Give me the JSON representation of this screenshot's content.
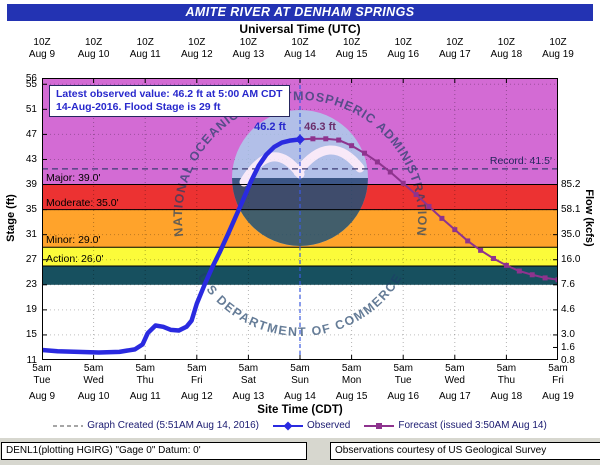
{
  "title": "AMITE RIVER AT DENHAM SPRINGS",
  "top_axis": {
    "label": "Universal Time (UTC)",
    "tick_time": "10Z",
    "dates": [
      "Aug 9",
      "Aug 10",
      "Aug 11",
      "Aug 12",
      "Aug 13",
      "Aug 14",
      "Aug 15",
      "Aug 16",
      "Aug 17",
      "Aug 18",
      "Aug 19"
    ]
  },
  "bottom_axis": {
    "label": "Site Time (CDT)",
    "tick_time": "5am",
    "weekdays": [
      "Tue",
      "Wed",
      "Thu",
      "Fri",
      "Sat",
      "Sun",
      "Mon",
      "Tue",
      "Wed",
      "Thu",
      "Fri"
    ],
    "dates": [
      "Aug 9",
      "Aug 10",
      "Aug 11",
      "Aug 12",
      "Aug 13",
      "Aug 14",
      "Aug 15",
      "Aug 16",
      "Aug 17",
      "Aug 18",
      "Aug 19"
    ]
  },
  "left_axis": {
    "label": "Stage (ft)",
    "ticks": [
      56,
      55,
      51,
      47,
      43,
      39,
      35,
      31,
      27,
      23,
      19,
      15,
      11
    ]
  },
  "right_axis": {
    "label": "Flow (kcfs)",
    "ticks": [
      {
        "stage": 39,
        "label": "85.2"
      },
      {
        "stage": 35,
        "label": "58.1"
      },
      {
        "stage": 31,
        "label": "35.0"
      },
      {
        "stage": 27,
        "label": "16.0"
      },
      {
        "stage": 23,
        "label": "7.6"
      },
      {
        "stage": 19,
        "label": "4.6"
      },
      {
        "stage": 15,
        "label": "3.0"
      },
      {
        "stage": 13,
        "label": "1.6"
      },
      {
        "stage": 11,
        "label": "0.8"
      }
    ]
  },
  "info_box": {
    "line1": "Latest observed value: 46.2 ft at 5:00 AM CDT",
    "line2": "14-Aug-2016.  Flood Stage is 29 ft"
  },
  "annotations": {
    "observed_peak": "46.2 ft",
    "forecast_peak": "46.3 ft",
    "record_label": "Record: 41.5'"
  },
  "thresholds": [
    {
      "name": "Major",
      "label": "Major: 39.0'",
      "stage": 39
    },
    {
      "name": "Moderate",
      "label": "Moderate: 35.0'",
      "stage": 35
    },
    {
      "name": "Minor",
      "label": "Minor: 29.0'",
      "stage": 29
    },
    {
      "name": "Action",
      "label": "Action: 26.0'",
      "stage": 26
    }
  ],
  "bands": [
    {
      "name": "major",
      "from": 39,
      "to": 56,
      "color": "#d36bd4"
    },
    {
      "name": "moderate",
      "from": 35,
      "to": 39,
      "color": "#ec3232"
    },
    {
      "name": "minor",
      "from": 29,
      "to": 35,
      "color": "#ffa32b"
    },
    {
      "name": "action",
      "from": 26,
      "to": 29,
      "color": "#fbfb3a"
    },
    {
      "name": "below-action",
      "from": 23,
      "to": 26,
      "color": "#17505f"
    }
  ],
  "watermark": {
    "arc_top": "NATIONAL OCEANIC AND ATMOSPHERIC ADMINISTRATION",
    "arc_bottom": "U.S DEPARTMENT OF COMMERCE"
  },
  "legend": [
    {
      "label": "Graph Created (5:51AM Aug 14, 2016)",
      "marker": "dashed",
      "color": "#888888"
    },
    {
      "label": "Observed",
      "marker": "line-diamond",
      "color": "#2a2ae0"
    },
    {
      "label": "Forecast (issued 3:50AM Aug 14)",
      "marker": "line-square",
      "color": "#8e338e"
    }
  ],
  "footer": {
    "left": "DENL1(plotting HGIRG) \"Gage 0\" Datum: 0'",
    "right": "Observations courtesy of US Geological Survey"
  },
  "chart_data": {
    "type": "line",
    "title": "AMITE RIVER AT DENHAM SPRINGS",
    "xlabel": "Site Time (CDT)",
    "ylabel": "Stage (ft)",
    "ylabel_right": "Flow (kcfs)",
    "ylim": [
      11,
      56
    ],
    "x_unit": "days since Aug 9 2016 5:00 AM CDT (ticks daily at 5am CDT / 10Z)",
    "grid": true,
    "legend_position": "bottom",
    "flood_categories": {
      "action": 26.0,
      "minor": 29.0,
      "moderate": 35.0,
      "major": 39.0,
      "record": 41.5
    },
    "latest_observed": {
      "stage_ft": 46.2,
      "time": "5:00 AM CDT 14-Aug-2016"
    },
    "forecast_crest_ft": 46.3,
    "stage_to_flow_kcfs": [
      [
        11,
        0.8
      ],
      [
        13,
        1.6
      ],
      [
        15,
        3.0
      ],
      [
        19,
        4.6
      ],
      [
        23,
        7.6
      ],
      [
        27,
        16.0
      ],
      [
        31,
        35.0
      ],
      [
        35,
        58.1
      ],
      [
        39,
        85.2
      ]
    ],
    "series": [
      {
        "name": "Observed",
        "color": "#2a2ae0",
        "points": [
          [
            0,
            12.6
          ],
          [
            0.3,
            12.4
          ],
          [
            0.7,
            12.3
          ],
          [
            1.1,
            12.2
          ],
          [
            1.5,
            12.3
          ],
          [
            1.8,
            12.7
          ],
          [
            1.95,
            13.5
          ],
          [
            2.05,
            15.3
          ],
          [
            2.2,
            16.5
          ],
          [
            2.35,
            16.3
          ],
          [
            2.5,
            15.8
          ],
          [
            2.65,
            15.7
          ],
          [
            2.8,
            16.3
          ],
          [
            2.9,
            17.3
          ],
          [
            3.0,
            20.0
          ],
          [
            3.15,
            23.0
          ],
          [
            3.3,
            25.8
          ],
          [
            3.45,
            28.3
          ],
          [
            3.6,
            31.0
          ],
          [
            3.75,
            33.8
          ],
          [
            3.9,
            36.6
          ],
          [
            4.05,
            39.5
          ],
          [
            4.2,
            42.0
          ],
          [
            4.35,
            43.8
          ],
          [
            4.5,
            45.0
          ],
          [
            4.65,
            45.7
          ],
          [
            4.8,
            46.0
          ],
          [
            5.0,
            46.2
          ]
        ]
      },
      {
        "name": "Forecast (issued 3:50AM Aug 14)",
        "color": "#8e338e",
        "points": [
          [
            5.0,
            46.2
          ],
          [
            5.25,
            46.3
          ],
          [
            5.5,
            46.3
          ],
          [
            5.75,
            46.1
          ],
          [
            6.0,
            45.2
          ],
          [
            6.25,
            44.0
          ],
          [
            6.5,
            42.6
          ],
          [
            6.75,
            41.0
          ],
          [
            7.0,
            39.2
          ],
          [
            7.25,
            37.4
          ],
          [
            7.5,
            35.5
          ],
          [
            7.75,
            33.6
          ],
          [
            8.0,
            31.8
          ],
          [
            8.25,
            30.0
          ],
          [
            8.5,
            28.5
          ],
          [
            8.75,
            27.2
          ],
          [
            9.0,
            26.1
          ],
          [
            9.25,
            25.2
          ],
          [
            9.5,
            24.6
          ],
          [
            9.75,
            24.1
          ],
          [
            10.0,
            23.8
          ]
        ]
      }
    ]
  }
}
